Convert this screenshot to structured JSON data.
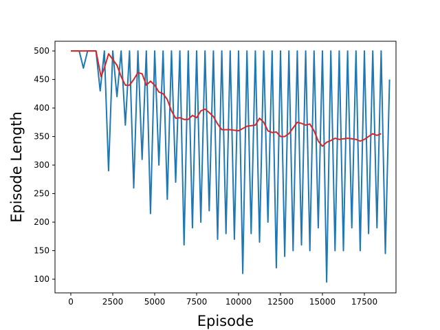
{
  "chart_data": {
    "type": "line",
    "x_label": "Episode",
    "y_label": "Episode Length",
    "xlim": [
      -943,
      19385
    ],
    "ylim": [
      76,
      517
    ],
    "xticks": [
      0,
      2500,
      5000,
      7500,
      10000,
      12500,
      15000,
      17500
    ],
    "yticks": [
      100,
      150,
      200,
      250,
      300,
      350,
      400,
      450,
      500
    ],
    "series": [
      {
        "color": "#1f77b4",
        "width": 2,
        "x": [
          0,
          250,
          500,
          750,
          1000,
          1250,
          1500,
          1750,
          2000,
          2250,
          2500,
          2750,
          3000,
          3250,
          3500,
          3750,
          4000,
          4250,
          4500,
          4750,
          5000,
          5250,
          5500,
          5750,
          6000,
          6250,
          6500,
          6750,
          7000,
          7250,
          7500,
          7750,
          8000,
          8250,
          8500,
          8750,
          9000,
          9250,
          9500,
          9750,
          10000,
          10250,
          10500,
          10750,
          11000,
          11250,
          11500,
          11750,
          12000,
          12250,
          12500,
          12750,
          13000,
          13250,
          13500,
          13750,
          14000,
          14250,
          14500,
          14750,
          15000,
          15250,
          15500,
          15750,
          16000,
          16250,
          16500,
          16750,
          17000,
          17250,
          17500,
          17750,
          18000,
          18250,
          18500,
          18750,
          19000
        ],
        "values": [
          500,
          500,
          500,
          470,
          500,
          500,
          500,
          430,
          500,
          290,
          500,
          420,
          500,
          370,
          500,
          260,
          500,
          310,
          500,
          215,
          500,
          300,
          500,
          240,
          500,
          270,
          500,
          160,
          500,
          190,
          500,
          200,
          500,
          220,
          500,
          170,
          500,
          180,
          500,
          170,
          500,
          110,
          500,
          180,
          500,
          165,
          500,
          200,
          500,
          120,
          500,
          140,
          500,
          150,
          500,
          160,
          500,
          150,
          500,
          190,
          500,
          95,
          500,
          150,
          500,
          150,
          500,
          190,
          500,
          150,
          500,
          180,
          500,
          190,
          500,
          145,
          450
        ]
      },
      {
        "color": "#d62728",
        "width": 2,
        "x": [
          0,
          500,
          1000,
          1500,
          1800,
          2000,
          2250,
          2500,
          2750,
          3000,
          3250,
          3500,
          3750,
          4000,
          4250,
          4500,
          4750,
          5000,
          5250,
          5500,
          5750,
          6000,
          6250,
          6500,
          6750,
          7000,
          7250,
          7500,
          7750,
          8000,
          8250,
          8500,
          8750,
          9000,
          9500,
          10000,
          10500,
          11000,
          11250,
          11500,
          11750,
          12000,
          12250,
          12500,
          12750,
          13000,
          13250,
          13500,
          13750,
          14000,
          14250,
          14500,
          14750,
          15000,
          15250,
          15500,
          15750,
          16000,
          16500,
          17000,
          17250,
          17500,
          17750,
          18000,
          18250,
          18500
        ],
        "values": [
          500,
          500,
          500,
          500,
          455,
          470,
          495,
          485,
          475,
          455,
          440,
          440,
          450,
          462,
          460,
          440,
          447,
          440,
          428,
          425,
          415,
          395,
          382,
          383,
          380,
          380,
          387,
          383,
          395,
          398,
          392,
          385,
          372,
          362,
          362,
          360,
          368,
          370,
          382,
          375,
          360,
          357,
          358,
          350,
          350,
          355,
          365,
          375,
          373,
          370,
          372,
          360,
          342,
          333,
          340,
          343,
          347,
          345,
          347,
          345,
          342,
          345,
          350,
          355,
          352,
          355
        ]
      }
    ]
  }
}
